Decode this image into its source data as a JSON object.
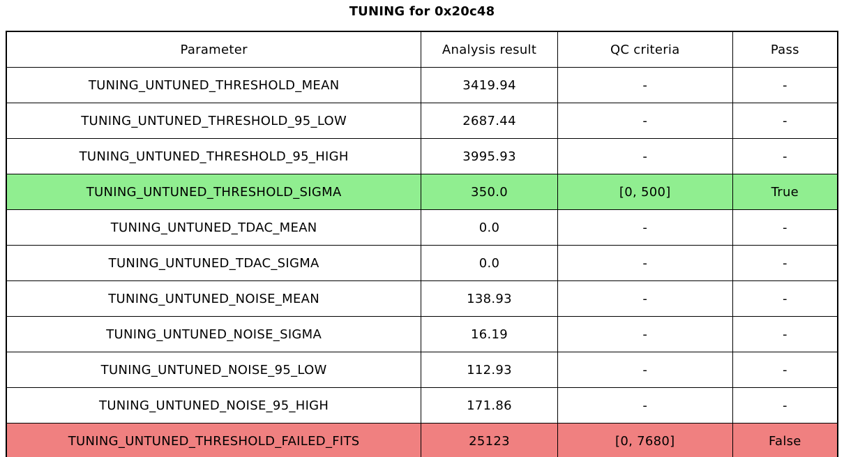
{
  "title": "TUNING for 0x20c48",
  "colors": {
    "pass_row": "#90ee90",
    "fail_row": "#f08080",
    "border": "#000000",
    "background": "#ffffff",
    "text": "#000000"
  },
  "chart_data": {
    "type": "table",
    "title": "TUNING for 0x20c48",
    "columns": [
      "Parameter",
      "Analysis result",
      "QC criteria",
      "Pass"
    ],
    "rows": [
      {
        "parameter": "TUNING_UNTUNED_THRESHOLD_MEAN",
        "result": "3419.94",
        "qc": "-",
        "pass": "-",
        "status": "none"
      },
      {
        "parameter": "TUNING_UNTUNED_THRESHOLD_95_LOW",
        "result": "2687.44",
        "qc": "-",
        "pass": "-",
        "status": "none"
      },
      {
        "parameter": "TUNING_UNTUNED_THRESHOLD_95_HIGH",
        "result": "3995.93",
        "qc": "-",
        "pass": "-",
        "status": "none"
      },
      {
        "parameter": "TUNING_UNTUNED_THRESHOLD_SIGMA",
        "result": "350.0",
        "qc": "[0, 500]",
        "pass": "True",
        "status": "pass"
      },
      {
        "parameter": "TUNING_UNTUNED_TDAC_MEAN",
        "result": "0.0",
        "qc": "-",
        "pass": "-",
        "status": "none"
      },
      {
        "parameter": "TUNING_UNTUNED_TDAC_SIGMA",
        "result": "0.0",
        "qc": "-",
        "pass": "-",
        "status": "none"
      },
      {
        "parameter": "TUNING_UNTUNED_NOISE_MEAN",
        "result": "138.93",
        "qc": "-",
        "pass": "-",
        "status": "none"
      },
      {
        "parameter": "TUNING_UNTUNED_NOISE_SIGMA",
        "result": "16.19",
        "qc": "-",
        "pass": "-",
        "status": "none"
      },
      {
        "parameter": "TUNING_UNTUNED_NOISE_95_LOW",
        "result": "112.93",
        "qc": "-",
        "pass": "-",
        "status": "none"
      },
      {
        "parameter": "TUNING_UNTUNED_NOISE_95_HIGH",
        "result": "171.86",
        "qc": "-",
        "pass": "-",
        "status": "none"
      },
      {
        "parameter": "TUNING_UNTUNED_THRESHOLD_FAILED_FITS",
        "result": "25123",
        "qc": "[0, 7680]",
        "pass": "False",
        "status": "fail"
      }
    ]
  }
}
